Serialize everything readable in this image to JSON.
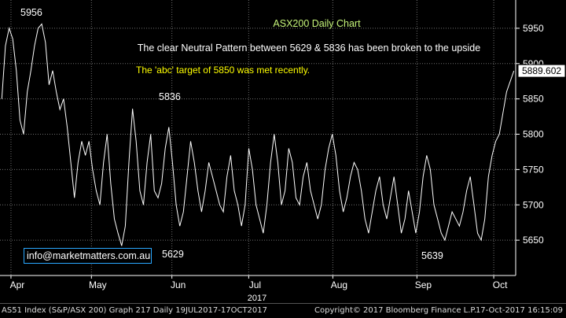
{
  "chart_data": {
    "type": "line",
    "title": "ASX200 Daily Chart",
    "annotations": [
      "The clear Neutral Pattern between 5629 & 5836 has been broken to the upside",
      "The 'abc' target of 5850 was met recently."
    ],
    "point_labels": [
      {
        "text": "5956",
        "x": 14,
        "y": 5956
      },
      {
        "text": "5836",
        "x": 46,
        "y": 5836
      },
      {
        "text": "5629",
        "x": 46,
        "y": 5629
      },
      {
        "text": "5639",
        "x": 124,
        "y": 5639
      }
    ],
    "last_price": "5889.602",
    "ylim": [
      5600,
      5990
    ],
    "yticks": [
      5650,
      5700,
      5750,
      5800,
      5850,
      5900,
      5950
    ],
    "ytick_labels": [
      "5650",
      "5700",
      "5750",
      "5800",
      "5850",
      "5900",
      "5950"
    ],
    "xticks": [
      {
        "label": "Apr",
        "x": 3
      },
      {
        "label": "May",
        "x": 25
      },
      {
        "label": "Jun",
        "x": 47
      },
      {
        "label": "Jul",
        "x": 68
      },
      {
        "label": "Aug",
        "x": 91
      },
      {
        "label": "Sep",
        "x": 114
      },
      {
        "label": "Oct",
        "x": 135
      }
    ],
    "xlabel": "2017",
    "xlim": [
      0,
      141
    ],
    "grid": true,
    "series": [
      {
        "values": [
          5850,
          5925,
          5950,
          5935,
          5890,
          5820,
          5800,
          5860,
          5890,
          5925,
          5950,
          5956,
          5930,
          5870,
          5890,
          5860,
          5835,
          5850,
          5810,
          5760,
          5710,
          5760,
          5790,
          5770,
          5790,
          5750,
          5720,
          5700,
          5760,
          5800,
          5730,
          5680,
          5660,
          5642,
          5670,
          5760,
          5836,
          5790,
          5720,
          5700,
          5760,
          5800,
          5720,
          5710,
          5730,
          5780,
          5810,
          5760,
          5700,
          5670,
          5690,
          5740,
          5790,
          5760,
          5720,
          5690,
          5720,
          5760,
          5740,
          5720,
          5700,
          5690,
          5740,
          5770,
          5720,
          5700,
          5670,
          5700,
          5780,
          5750,
          5700,
          5680,
          5660,
          5700,
          5760,
          5800,
          5760,
          5700,
          5720,
          5780,
          5760,
          5710,
          5700,
          5740,
          5760,
          5720,
          5700,
          5680,
          5700,
          5750,
          5780,
          5800,
          5770,
          5720,
          5690,
          5710,
          5740,
          5760,
          5750,
          5720,
          5680,
          5660,
          5690,
          5720,
          5740,
          5700,
          5680,
          5710,
          5740,
          5700,
          5660,
          5680,
          5720,
          5690,
          5660,
          5690,
          5740,
          5770,
          5750,
          5700,
          5680,
          5660,
          5650,
          5670,
          5690,
          5680,
          5670,
          5690,
          5720,
          5740,
          5700,
          5660,
          5650,
          5680,
          5740,
          5770,
          5790,
          5800,
          5830,
          5860,
          5875,
          5889.602
        ]
      }
    ]
  },
  "email": "info@marketmatters.com.au",
  "footer": {
    "left": "AS51 Index (S&P/ASX 200) Graph 217  Daily 19JUL2017-17OCT2017",
    "center": "Copyright© 2017 Bloomberg Finance L.P.",
    "right": "17-Oct-2017 16:15:09"
  },
  "colors": {
    "background": "#000000",
    "line": "#ffffff",
    "grid": "#6f6f6f",
    "title": "#c6f57a",
    "highlight_text": "#ffff00",
    "email_border": "#2aa8ff"
  }
}
